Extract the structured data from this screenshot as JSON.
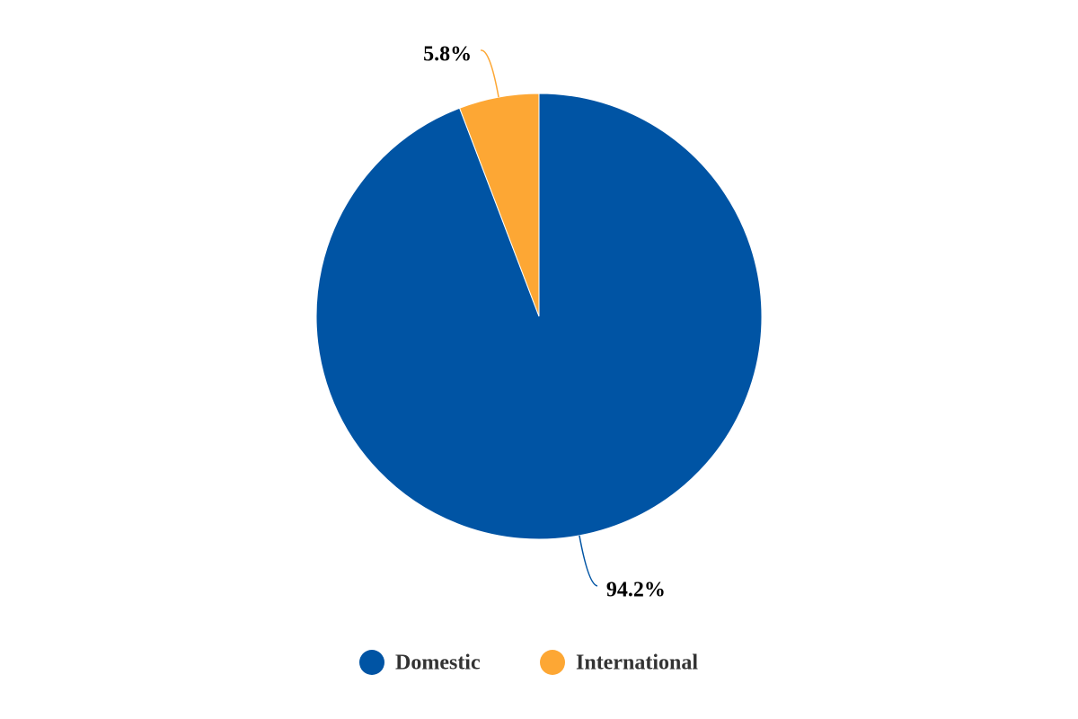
{
  "chart_data": {
    "type": "pie",
    "categories": [
      "Domestic",
      "International"
    ],
    "values": [
      94.2,
      5.8
    ],
    "value_labels": [
      "94.2%",
      "5.8%"
    ],
    "colors": [
      "#0054a4",
      "#fda734"
    ],
    "legend": "bottom"
  }
}
